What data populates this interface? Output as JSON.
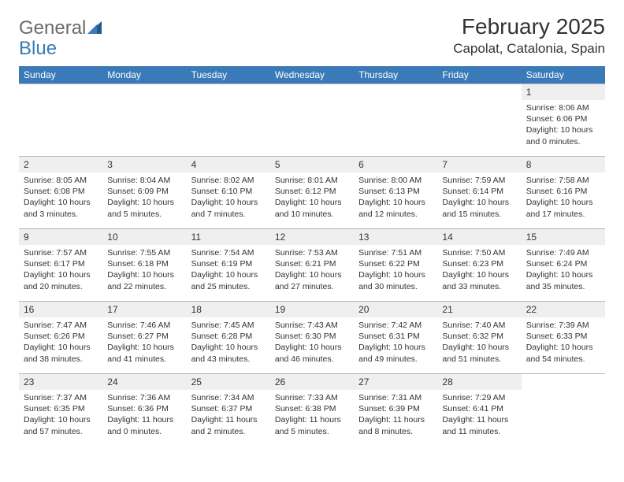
{
  "logo": {
    "line1": "General",
    "line2": "Blue",
    "line1_color": "#6a6a6a",
    "line2_color": "#3a7ab8",
    "icon_color": "#1f5a94"
  },
  "title": "February 2025",
  "location": "Capolat, Catalonia, Spain",
  "colors": {
    "header_bg": "#3a7ab8",
    "header_text": "#ffffff",
    "daynum_bg": "#efefef",
    "text": "#333333",
    "rule": "#a9b8c7",
    "page_bg": "#ffffff"
  },
  "dayNames": [
    "Sunday",
    "Monday",
    "Tuesday",
    "Wednesday",
    "Thursday",
    "Friday",
    "Saturday"
  ],
  "weeks": [
    [
      {
        "n": "",
        "sr": "",
        "ss": "",
        "dl": ""
      },
      {
        "n": "",
        "sr": "",
        "ss": "",
        "dl": ""
      },
      {
        "n": "",
        "sr": "",
        "ss": "",
        "dl": ""
      },
      {
        "n": "",
        "sr": "",
        "ss": "",
        "dl": ""
      },
      {
        "n": "",
        "sr": "",
        "ss": "",
        "dl": ""
      },
      {
        "n": "",
        "sr": "",
        "ss": "",
        "dl": ""
      },
      {
        "n": "1",
        "sr": "Sunrise: 8:06 AM",
        "ss": "Sunset: 6:06 PM",
        "dl": "Daylight: 10 hours and 0 minutes."
      }
    ],
    [
      {
        "n": "2",
        "sr": "Sunrise: 8:05 AM",
        "ss": "Sunset: 6:08 PM",
        "dl": "Daylight: 10 hours and 3 minutes."
      },
      {
        "n": "3",
        "sr": "Sunrise: 8:04 AM",
        "ss": "Sunset: 6:09 PM",
        "dl": "Daylight: 10 hours and 5 minutes."
      },
      {
        "n": "4",
        "sr": "Sunrise: 8:02 AM",
        "ss": "Sunset: 6:10 PM",
        "dl": "Daylight: 10 hours and 7 minutes."
      },
      {
        "n": "5",
        "sr": "Sunrise: 8:01 AM",
        "ss": "Sunset: 6:12 PM",
        "dl": "Daylight: 10 hours and 10 minutes."
      },
      {
        "n": "6",
        "sr": "Sunrise: 8:00 AM",
        "ss": "Sunset: 6:13 PM",
        "dl": "Daylight: 10 hours and 12 minutes."
      },
      {
        "n": "7",
        "sr": "Sunrise: 7:59 AM",
        "ss": "Sunset: 6:14 PM",
        "dl": "Daylight: 10 hours and 15 minutes."
      },
      {
        "n": "8",
        "sr": "Sunrise: 7:58 AM",
        "ss": "Sunset: 6:16 PM",
        "dl": "Daylight: 10 hours and 17 minutes."
      }
    ],
    [
      {
        "n": "9",
        "sr": "Sunrise: 7:57 AM",
        "ss": "Sunset: 6:17 PM",
        "dl": "Daylight: 10 hours and 20 minutes."
      },
      {
        "n": "10",
        "sr": "Sunrise: 7:55 AM",
        "ss": "Sunset: 6:18 PM",
        "dl": "Daylight: 10 hours and 22 minutes."
      },
      {
        "n": "11",
        "sr": "Sunrise: 7:54 AM",
        "ss": "Sunset: 6:19 PM",
        "dl": "Daylight: 10 hours and 25 minutes."
      },
      {
        "n": "12",
        "sr": "Sunrise: 7:53 AM",
        "ss": "Sunset: 6:21 PM",
        "dl": "Daylight: 10 hours and 27 minutes."
      },
      {
        "n": "13",
        "sr": "Sunrise: 7:51 AM",
        "ss": "Sunset: 6:22 PM",
        "dl": "Daylight: 10 hours and 30 minutes."
      },
      {
        "n": "14",
        "sr": "Sunrise: 7:50 AM",
        "ss": "Sunset: 6:23 PM",
        "dl": "Daylight: 10 hours and 33 minutes."
      },
      {
        "n": "15",
        "sr": "Sunrise: 7:49 AM",
        "ss": "Sunset: 6:24 PM",
        "dl": "Daylight: 10 hours and 35 minutes."
      }
    ],
    [
      {
        "n": "16",
        "sr": "Sunrise: 7:47 AM",
        "ss": "Sunset: 6:26 PM",
        "dl": "Daylight: 10 hours and 38 minutes."
      },
      {
        "n": "17",
        "sr": "Sunrise: 7:46 AM",
        "ss": "Sunset: 6:27 PM",
        "dl": "Daylight: 10 hours and 41 minutes."
      },
      {
        "n": "18",
        "sr": "Sunrise: 7:45 AM",
        "ss": "Sunset: 6:28 PM",
        "dl": "Daylight: 10 hours and 43 minutes."
      },
      {
        "n": "19",
        "sr": "Sunrise: 7:43 AM",
        "ss": "Sunset: 6:30 PM",
        "dl": "Daylight: 10 hours and 46 minutes."
      },
      {
        "n": "20",
        "sr": "Sunrise: 7:42 AM",
        "ss": "Sunset: 6:31 PM",
        "dl": "Daylight: 10 hours and 49 minutes."
      },
      {
        "n": "21",
        "sr": "Sunrise: 7:40 AM",
        "ss": "Sunset: 6:32 PM",
        "dl": "Daylight: 10 hours and 51 minutes."
      },
      {
        "n": "22",
        "sr": "Sunrise: 7:39 AM",
        "ss": "Sunset: 6:33 PM",
        "dl": "Daylight: 10 hours and 54 minutes."
      }
    ],
    [
      {
        "n": "23",
        "sr": "Sunrise: 7:37 AM",
        "ss": "Sunset: 6:35 PM",
        "dl": "Daylight: 10 hours and 57 minutes."
      },
      {
        "n": "24",
        "sr": "Sunrise: 7:36 AM",
        "ss": "Sunset: 6:36 PM",
        "dl": "Daylight: 11 hours and 0 minutes."
      },
      {
        "n": "25",
        "sr": "Sunrise: 7:34 AM",
        "ss": "Sunset: 6:37 PM",
        "dl": "Daylight: 11 hours and 2 minutes."
      },
      {
        "n": "26",
        "sr": "Sunrise: 7:33 AM",
        "ss": "Sunset: 6:38 PM",
        "dl": "Daylight: 11 hours and 5 minutes."
      },
      {
        "n": "27",
        "sr": "Sunrise: 7:31 AM",
        "ss": "Sunset: 6:39 PM",
        "dl": "Daylight: 11 hours and 8 minutes."
      },
      {
        "n": "28",
        "sr": "Sunrise: 7:29 AM",
        "ss": "Sunset: 6:41 PM",
        "dl": "Daylight: 11 hours and 11 minutes."
      },
      {
        "n": "",
        "sr": "",
        "ss": "",
        "dl": ""
      }
    ]
  ]
}
